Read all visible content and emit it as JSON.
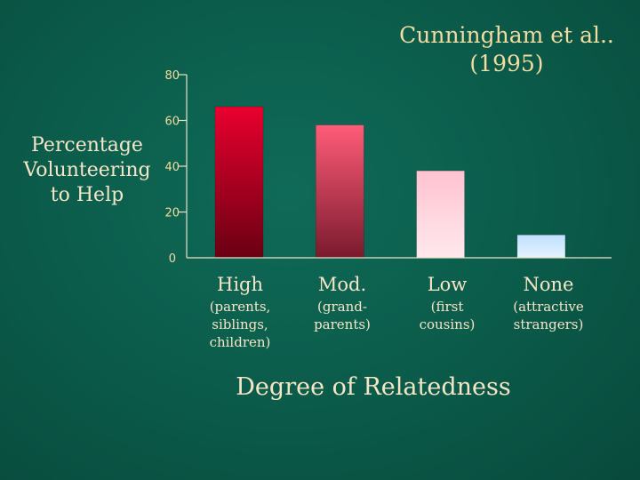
{
  "slide": {
    "title_line1": "Cunningham et al..",
    "title_line2": "(1995)",
    "ylabel_line1": "Percentage",
    "ylabel_line2": "Volunteering",
    "ylabel_line3": "to Help",
    "xlabel": "Degree of Relatedness"
  },
  "chart_data": {
    "type": "bar",
    "categories": [
      "High",
      "Mod.",
      "Low",
      "None"
    ],
    "sublabels": [
      [
        "(parents,",
        "siblings,",
        "children)"
      ],
      [
        "(grand-",
        "parents)"
      ],
      [
        "(first",
        "cousins)"
      ],
      [
        "(attractive",
        "strangers)"
      ]
    ],
    "values": [
      66,
      58,
      38,
      10
    ],
    "yticks": [
      0,
      20,
      40,
      60,
      80
    ],
    "ylim": [
      0,
      80
    ],
    "title": "Cunningham et al.. (1995)",
    "xlabel": "Degree of Relatedness",
    "ylabel": "Percentage Volunteering to Help",
    "grid": false,
    "colors": {
      "bar_gradients": [
        [
          "#e8002f",
          "#6a0012"
        ],
        [
          "#ff5c78",
          "#7a1a2e"
        ],
        [
          "#ffc2cf",
          "#ffe9ee"
        ],
        [
          "#bfe0ff",
          "#e6f3ff"
        ]
      ],
      "axis": "#e9e3c8",
      "text": "#f6e6c8",
      "tick_text": "#f2dc9f"
    }
  }
}
